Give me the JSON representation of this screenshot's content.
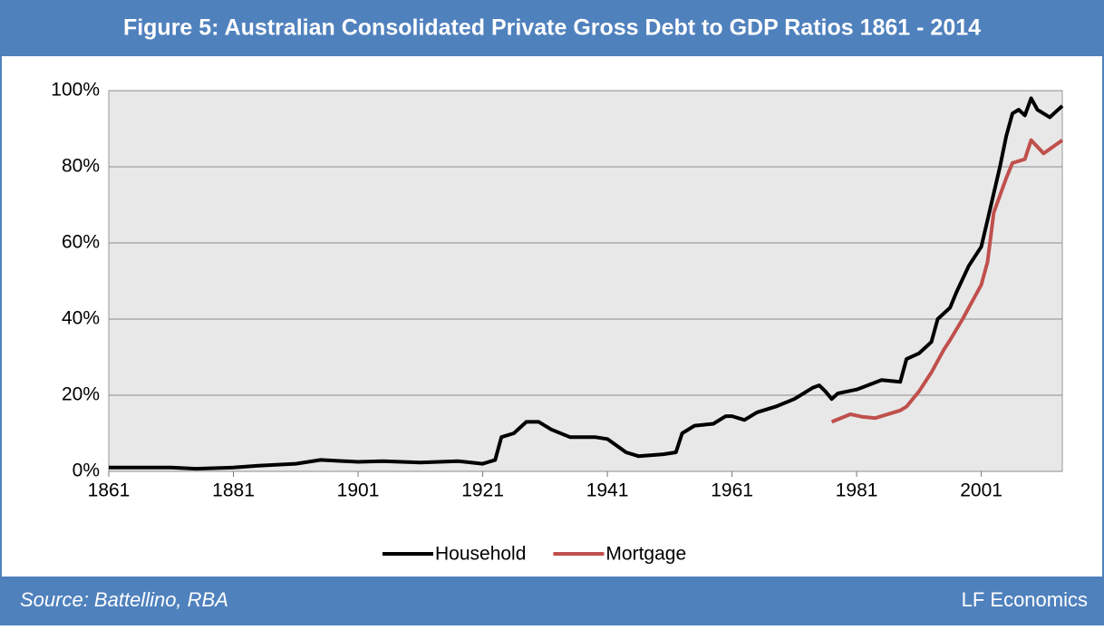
{
  "chart_data": {
    "type": "line",
    "title": "Figure 5: Australian Consolidated Private Gross Debt to GDP Ratios 1861 - 2014",
    "source": "Source: Battellino, RBA",
    "credit": "LF Economics",
    "xlim": [
      1861,
      2014
    ],
    "xticks": [
      1861,
      1881,
      1901,
      1921,
      1941,
      1961,
      1981,
      2001
    ],
    "ylim": [
      0,
      100
    ],
    "yticks": [
      {
        "value": 0,
        "label": "0%"
      },
      {
        "value": 20,
        "label": "20%"
      },
      {
        "value": 40,
        "label": "40%"
      },
      {
        "value": 60,
        "label": "60%"
      },
      {
        "value": 80,
        "label": "80%"
      },
      {
        "value": 100,
        "label": "100%"
      }
    ],
    "grid": true,
    "legend": "bottom",
    "series": [
      {
        "name": "Household",
        "color": "#000000",
        "x": [
          1861,
          1871,
          1875,
          1881,
          1885,
          1891,
          1895,
          1901,
          1905,
          1911,
          1917,
          1921,
          1922,
          1923,
          1924,
          1926,
          1928,
          1930,
          1932,
          1935,
          1939,
          1941,
          1944,
          1946,
          1950,
          1952,
          1953,
          1955,
          1958,
          1960,
          1961,
          1963,
          1965,
          1968,
          1971,
          1974,
          1975,
          1976,
          1977,
          1978,
          1981,
          1985,
          1988,
          1989,
          1991,
          1993,
          1994,
          1996,
          1997,
          1999,
          2001,
          2002,
          2004,
          2005,
          2006,
          2007,
          2008,
          2009,
          2010,
          2012,
          2014
        ],
        "values": [
          1,
          1,
          0.7,
          1,
          1.5,
          2,
          3,
          2.5,
          2.7,
          2.3,
          2.7,
          2,
          2.5,
          3,
          9,
          10,
          13,
          13,
          11,
          9,
          9,
          8.5,
          5,
          4,
          4.5,
          5,
          10,
          12,
          12.5,
          14.5,
          14.5,
          13.5,
          15.5,
          17,
          19,
          22,
          22.6,
          21,
          19,
          20.5,
          21.5,
          24,
          23.5,
          29.5,
          31,
          34,
          40,
          43,
          47,
          54,
          59,
          66,
          80,
          88,
          94,
          95,
          93.5,
          98,
          95,
          93,
          96
        ]
      },
      {
        "name": "Mortgage",
        "color": "#c0504d",
        "x": [
          1977,
          1980,
          1982,
          1984,
          1988,
          1989,
          1991,
          1993,
          1995,
          1996,
          1998,
          2001,
          2002,
          2003,
          2005,
          2006,
          2008,
          2009,
          2011,
          2014
        ],
        "values": [
          13,
          15,
          14.3,
          14,
          16,
          17,
          21,
          26,
          32,
          34.5,
          40,
          49,
          55,
          68,
          77,
          81,
          82,
          87,
          83.5,
          87
        ]
      }
    ]
  }
}
